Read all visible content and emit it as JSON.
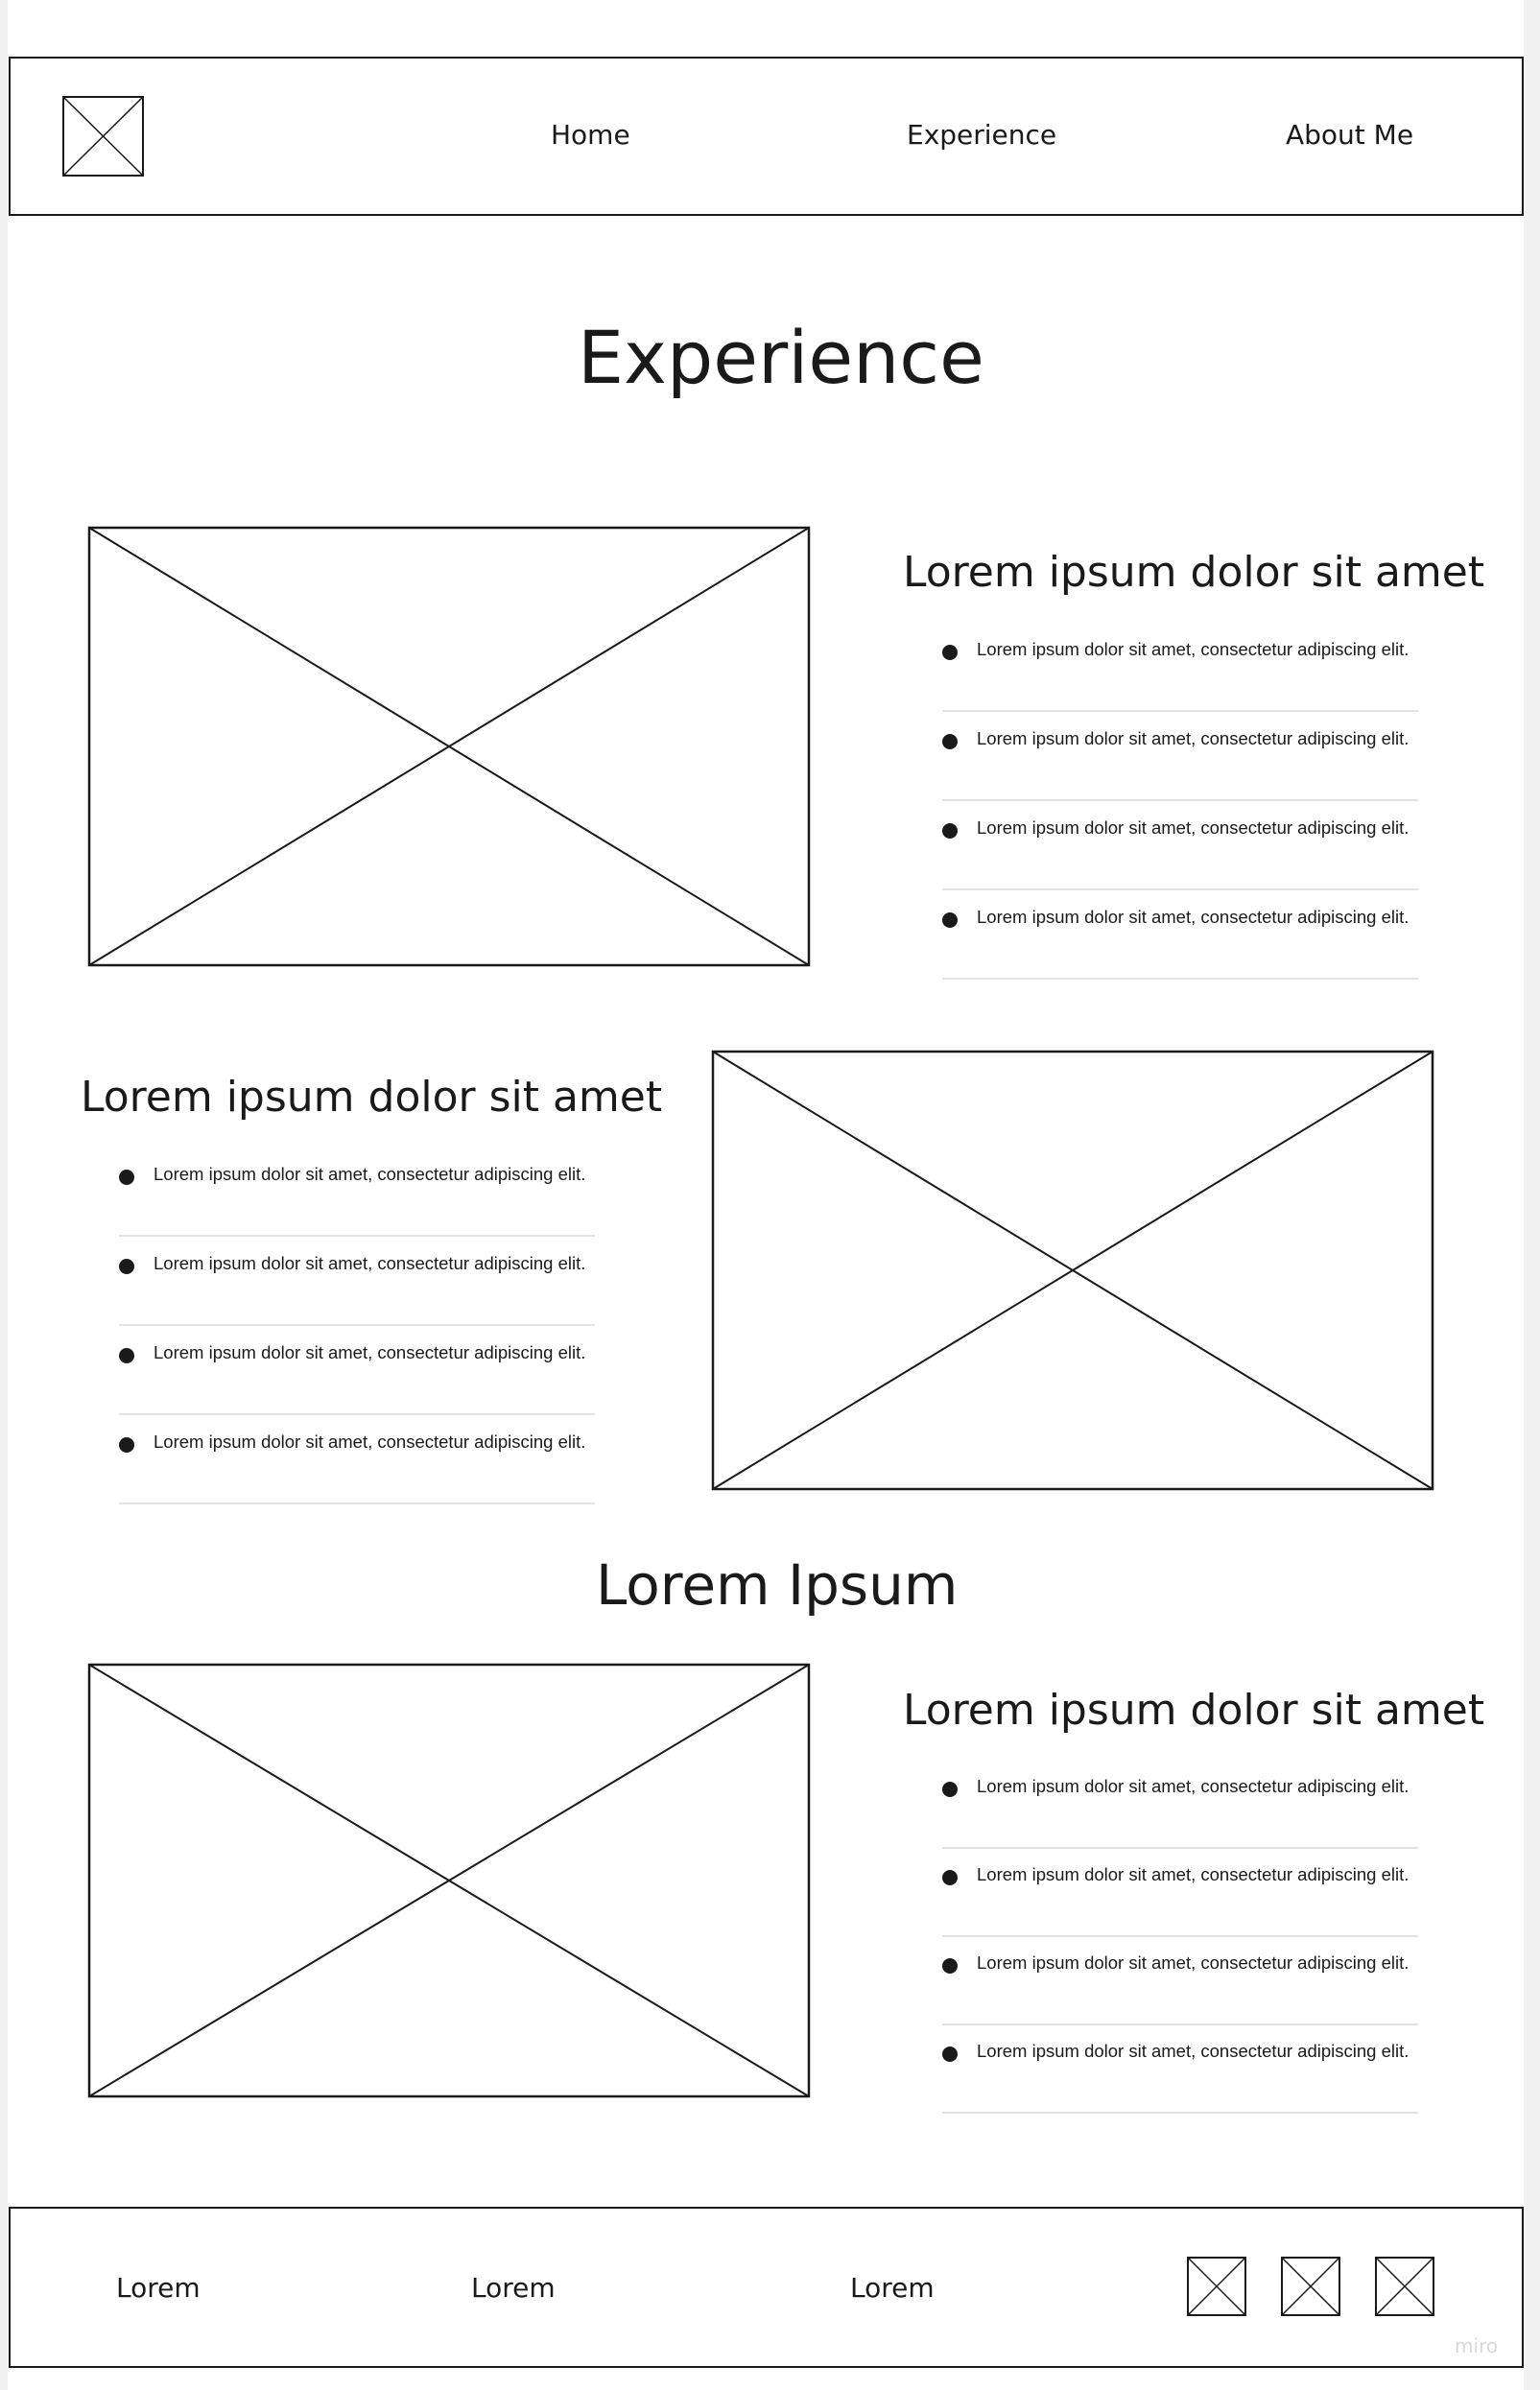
{
  "header": {
    "logo_icon": "image-placeholder-icon",
    "nav": [
      {
        "label": "Home"
      },
      {
        "label": "Experience"
      },
      {
        "label": "About Me"
      }
    ]
  },
  "main": {
    "title": "Experience",
    "sections": [
      {
        "heading": "Lorem ipsum dolor sit amet",
        "items": [
          "Lorem ipsum dolor sit amet, consectetur adipiscing elit.",
          "Lorem ipsum dolor sit amet, consectetur adipiscing elit.",
          "Lorem ipsum dolor sit amet, consectetur adipiscing elit.",
          "Lorem ipsum dolor sit amet, consectetur adipiscing elit."
        ]
      },
      {
        "heading": "Lorem ipsum dolor sit amet",
        "items": [
          "Lorem ipsum dolor sit amet, consectetur adipiscing elit.",
          "Lorem ipsum dolor sit amet, consectetur adipiscing elit.",
          "Lorem ipsum dolor sit amet, consectetur adipiscing elit.",
          "Lorem ipsum dolor sit amet, consectetur adipiscing elit."
        ]
      },
      {
        "heading": "Lorem ipsum dolor sit amet",
        "items": [
          "Lorem ipsum dolor sit amet, consectetur adipiscing elit.",
          "Lorem ipsum dolor sit amet, consectetur adipiscing elit.",
          "Lorem ipsum dolor sit amet, consectetur adipiscing elit.",
          "Lorem ipsum dolor sit amet, consectetur adipiscing elit."
        ]
      }
    ],
    "subtitle": "Lorem Ipsum"
  },
  "footer": {
    "links": [
      {
        "label": "Lorem"
      },
      {
        "label": "Lorem"
      },
      {
        "label": "Lorem"
      }
    ],
    "icons": [
      "image-placeholder-icon",
      "image-placeholder-icon",
      "image-placeholder-icon"
    ],
    "watermark": "miro"
  }
}
